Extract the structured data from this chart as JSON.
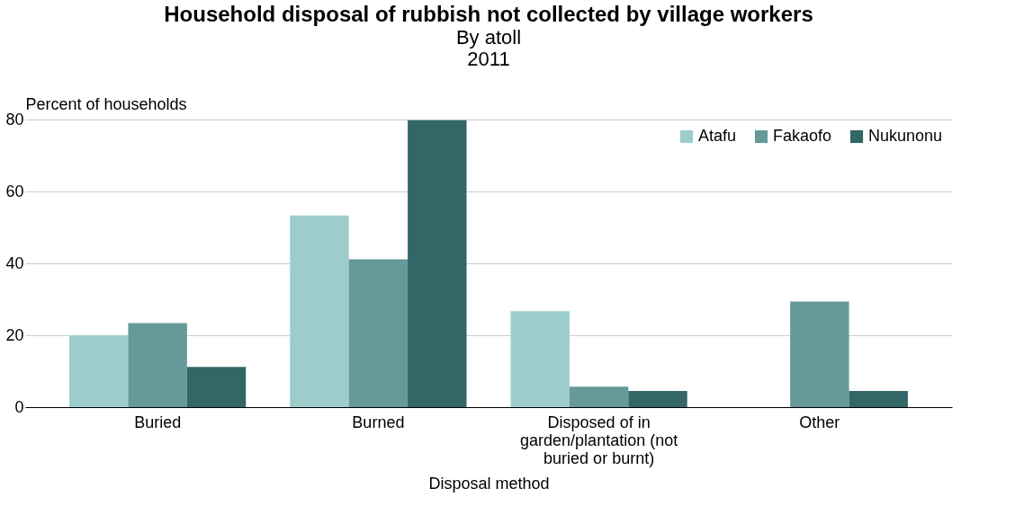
{
  "chart_data": {
    "type": "bar",
    "title": "Household disposal of rubbish not collected by village workers",
    "subtitle": "By atoll\n2011",
    "xlabel": "Disposal method",
    "ylabel": "Percent of households",
    "categories": [
      "Buried",
      "Burned",
      "Disposed of in garden/plantation (not buried or burnt)",
      "Other"
    ],
    "series": [
      {
        "name": "Atafu",
        "color": "#9ccccc",
        "values": [
          20,
          53.3,
          26.7,
          null
        ]
      },
      {
        "name": "Fakaofo",
        "color": "#669999",
        "values": [
          23.4,
          41.1,
          5.7,
          29.4
        ]
      },
      {
        "name": "Nukunonu",
        "color": "#336666",
        "values": [
          11.2,
          79.8,
          4.5,
          4.5
        ]
      }
    ],
    "ylim": [
      0,
      80
    ],
    "yticks": [
      0,
      20,
      40,
      60,
      80
    ],
    "grid": "y",
    "legend": "top right"
  }
}
